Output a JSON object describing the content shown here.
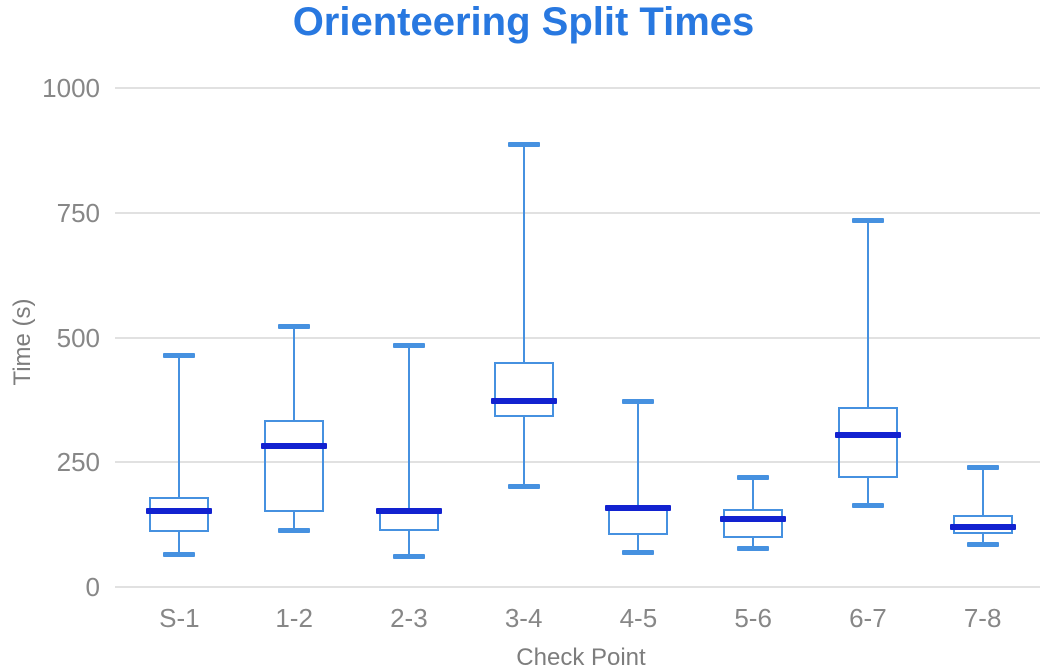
{
  "title": "Orienteering Split Times",
  "colors": {
    "title": "#2878e0",
    "box_stroke": "#4691e0",
    "median": "#1222d0",
    "grid": "#e1e1e1",
    "tick_label": "#878787",
    "axis_title": "#7d7d7d",
    "background": "#ffffff"
  },
  "chart_data": {
    "type": "box",
    "title": "Orienteering Split Times",
    "xlabel": "Check Point",
    "ylabel": "Time (s)",
    "ylim": [
      0,
      1000
    ],
    "yticks": [
      0,
      250,
      500,
      750,
      1000
    ],
    "grid": true,
    "legend": false,
    "categories": [
      "S-1",
      "1-2",
      "2-3",
      "3-4",
      "4-5",
      "5-6",
      "6-7",
      "7-8"
    ],
    "boxes": [
      {
        "category": "S-1",
        "min": 65,
        "q1": 110,
        "median": 152,
        "q3": 180,
        "max": 464
      },
      {
        "category": "1-2",
        "min": 113,
        "q1": 150,
        "median": 283,
        "q3": 334,
        "max": 524
      },
      {
        "category": "2-3",
        "min": 61,
        "q1": 112,
        "median": 153,
        "q3": 157,
        "max": 485
      },
      {
        "category": "3-4",
        "min": 200,
        "q1": 340,
        "median": 372,
        "q3": 451,
        "max": 887
      },
      {
        "category": "4-5",
        "min": 69,
        "q1": 104,
        "median": 158,
        "q3": 162,
        "max": 373
      },
      {
        "category": "5-6",
        "min": 77,
        "q1": 98,
        "median": 136,
        "q3": 156,
        "max": 221
      },
      {
        "category": "6-7",
        "min": 163,
        "q1": 218,
        "median": 304,
        "q3": 361,
        "max": 735
      },
      {
        "category": "7-8",
        "min": 85,
        "q1": 106,
        "median": 120,
        "q3": 144,
        "max": 241
      }
    ]
  }
}
